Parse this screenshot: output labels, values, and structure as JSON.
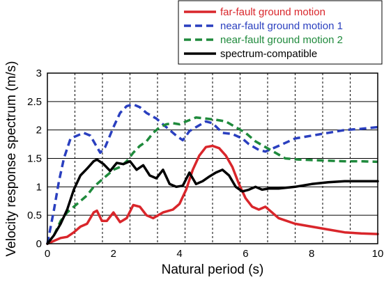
{
  "chart_data": {
    "type": "line",
    "title": "",
    "xlabel": "Natural period (s)",
    "ylabel": "Velocity response spectrum (m/s)",
    "xlim": [
      0,
      10
    ],
    "ylim": [
      0,
      3
    ],
    "xticks": [
      "0",
      "2",
      "4",
      "6",
      "8",
      "10"
    ],
    "yticks": [
      "0",
      "0.5",
      "1",
      "1.5",
      "2",
      "2.5",
      "3"
    ],
    "grid": "vertical dashed every 0.833 s, horizontal solid at y ticks",
    "legend_position": "top-right, outside plot",
    "series": [
      {
        "name": "far-fault ground motion",
        "color": "#d9262b",
        "dash": "solid",
        "x": [
          0,
          0.2,
          0.4,
          0.6,
          0.8,
          1.0,
          1.2,
          1.4,
          1.5,
          1.65,
          1.8,
          2.0,
          2.2,
          2.4,
          2.6,
          2.8,
          3.0,
          3.2,
          3.5,
          3.8,
          4.0,
          4.2,
          4.4,
          4.6,
          4.8,
          5.0,
          5.2,
          5.4,
          5.6,
          5.8,
          6.0,
          6.2,
          6.4,
          6.6,
          6.8,
          7.0,
          7.5,
          8.0,
          8.5,
          9.0,
          9.5,
          10.0
        ],
        "y": [
          0,
          0.05,
          0.1,
          0.12,
          0.2,
          0.3,
          0.35,
          0.55,
          0.58,
          0.4,
          0.4,
          0.55,
          0.38,
          0.45,
          0.68,
          0.65,
          0.5,
          0.45,
          0.55,
          0.6,
          0.7,
          0.95,
          1.3,
          1.55,
          1.7,
          1.72,
          1.68,
          1.55,
          1.35,
          1.05,
          0.8,
          0.65,
          0.6,
          0.65,
          0.55,
          0.45,
          0.35,
          0.3,
          0.25,
          0.2,
          0.18,
          0.17
        ]
      },
      {
        "name": "near-fault ground motion 1",
        "color": "#2a3fbf",
        "dash": "dashed",
        "x": [
          0,
          0.2,
          0.35,
          0.5,
          0.7,
          0.9,
          1.1,
          1.3,
          1.5,
          1.6,
          1.75,
          2.0,
          2.2,
          2.4,
          2.6,
          2.8,
          3.0,
          3.3,
          3.6,
          3.9,
          4.1,
          4.3,
          4.5,
          4.8,
          5.0,
          5.3,
          5.6,
          5.9,
          6.1,
          6.4,
          6.6,
          7.0,
          7.5,
          8.0,
          8.5,
          9.0,
          9.5,
          10.0
        ],
        "y": [
          0,
          0.6,
          1.1,
          1.5,
          1.85,
          1.9,
          1.95,
          1.9,
          1.7,
          1.6,
          1.7,
          2.05,
          2.3,
          2.42,
          2.45,
          2.4,
          2.3,
          2.2,
          2.05,
          1.9,
          1.82,
          1.98,
          2.05,
          2.15,
          2.12,
          1.95,
          1.93,
          1.85,
          1.75,
          1.65,
          1.62,
          1.72,
          1.85,
          1.9,
          1.95,
          2.0,
          2.02,
          2.05
        ]
      },
      {
        "name": "near-fault ground motion 2",
        "color": "#1f8a3c",
        "dash": "dashed",
        "x": [
          0,
          0.2,
          0.4,
          0.6,
          0.8,
          1.0,
          1.2,
          1.4,
          1.6,
          1.8,
          2.0,
          2.2,
          2.4,
          2.6,
          2.8,
          3.0,
          3.2,
          3.4,
          3.6,
          3.8,
          4.0,
          4.2,
          4.5,
          4.8,
          5.1,
          5.4,
          5.7,
          6.0,
          6.3,
          6.6,
          6.9,
          7.2,
          7.6,
          8.0,
          8.5,
          9.0,
          9.5,
          10.0
        ],
        "y": [
          0,
          0.15,
          0.4,
          0.55,
          0.65,
          0.75,
          0.85,
          1.0,
          1.1,
          1.2,
          1.3,
          1.35,
          1.45,
          1.6,
          1.72,
          1.8,
          1.95,
          2.05,
          2.1,
          2.12,
          2.1,
          2.15,
          2.22,
          2.2,
          2.18,
          2.15,
          2.05,
          1.95,
          1.8,
          1.7,
          1.6,
          1.5,
          1.48,
          1.47,
          1.46,
          1.45,
          1.45,
          1.44
        ]
      },
      {
        "name": "spectrum-compatible",
        "color": "#000000",
        "dash": "solid",
        "x": [
          0,
          0.2,
          0.4,
          0.6,
          0.8,
          1.0,
          1.2,
          1.4,
          1.5,
          1.7,
          1.9,
          2.1,
          2.3,
          2.5,
          2.7,
          2.9,
          3.1,
          3.3,
          3.5,
          3.7,
          3.9,
          4.1,
          4.3,
          4.5,
          4.7,
          4.9,
          5.1,
          5.3,
          5.5,
          5.7,
          5.9,
          6.1,
          6.3,
          6.5,
          6.7,
          7.0,
          7.5,
          8.0,
          8.5,
          9.0,
          9.5,
          10.0
        ],
        "y": [
          0,
          0.15,
          0.35,
          0.6,
          0.95,
          1.2,
          1.32,
          1.45,
          1.48,
          1.4,
          1.28,
          1.42,
          1.4,
          1.45,
          1.3,
          1.38,
          1.2,
          1.15,
          1.3,
          1.05,
          1.0,
          1.02,
          1.25,
          1.05,
          1.1,
          1.18,
          1.25,
          1.3,
          1.2,
          1.0,
          0.92,
          0.95,
          1.0,
          0.95,
          0.97,
          0.97,
          1.0,
          1.05,
          1.08,
          1.1,
          1.1,
          1.1
        ]
      }
    ]
  }
}
